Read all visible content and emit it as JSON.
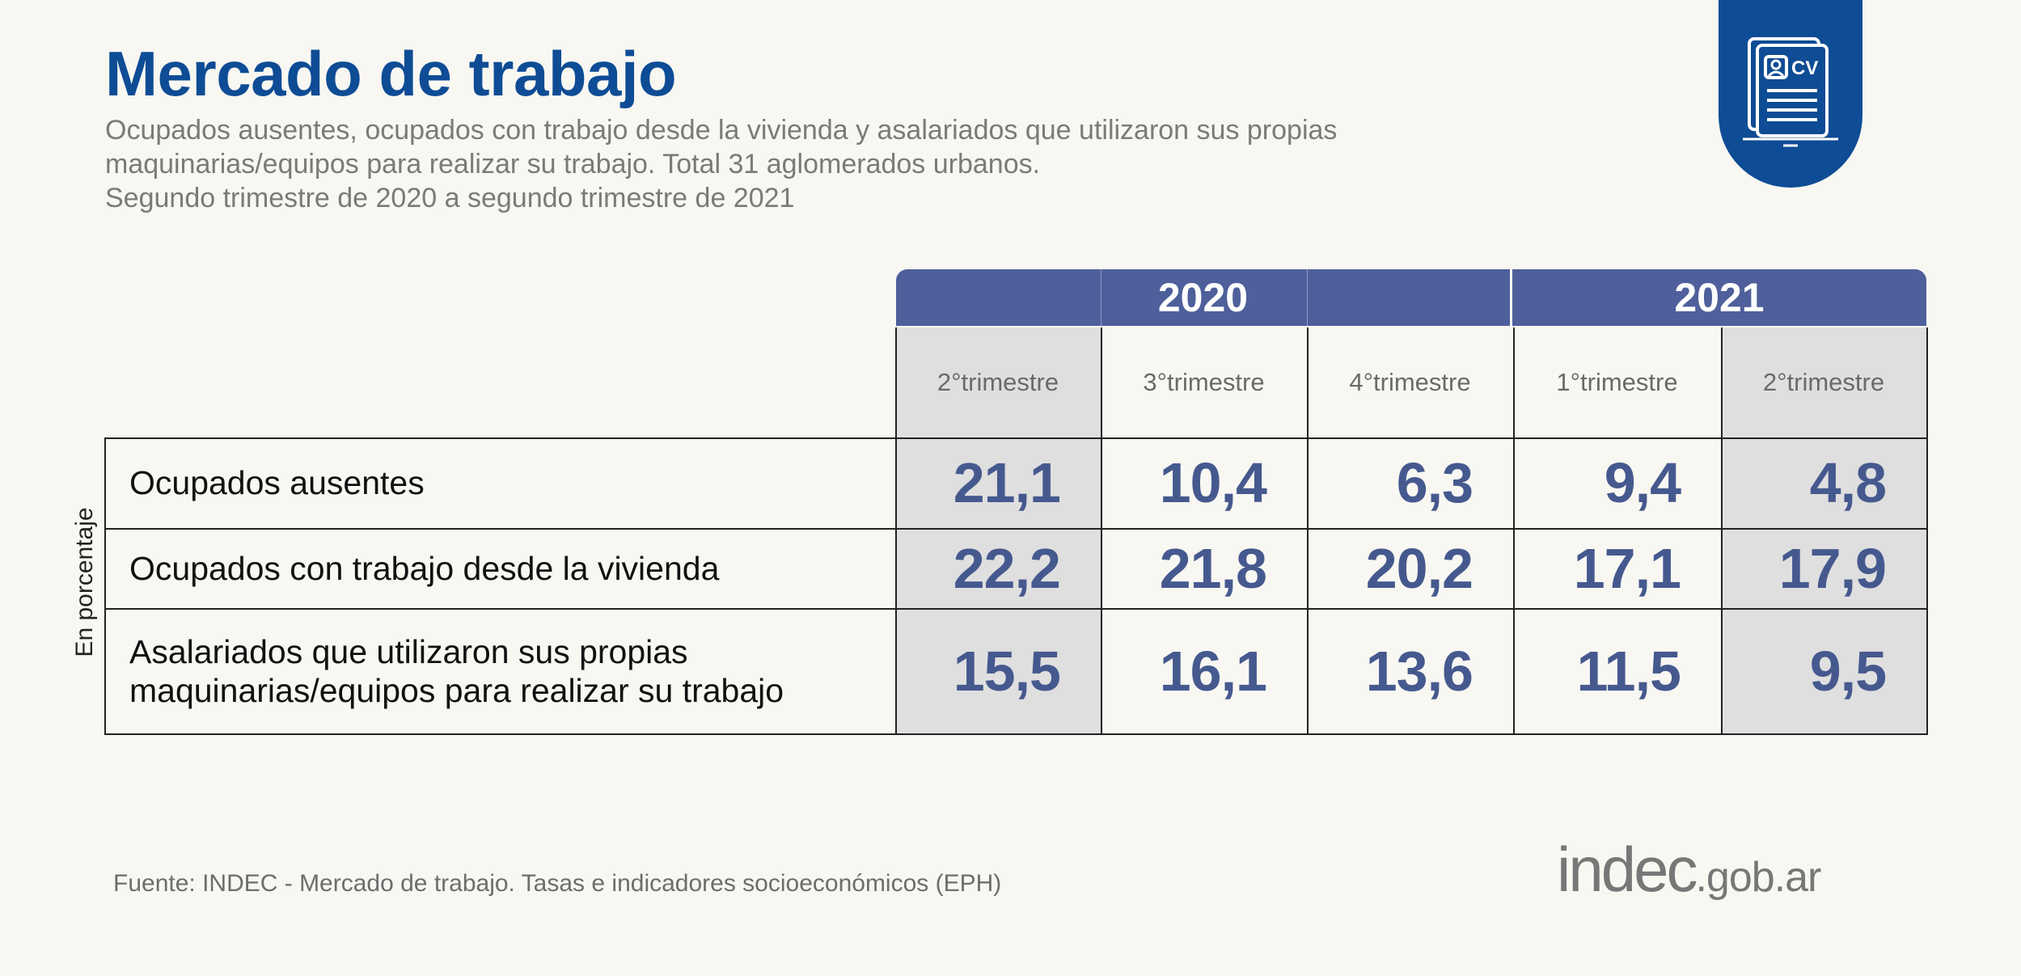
{
  "header": {
    "title": "Mercado de trabajo",
    "subtitle_lines": [
      "Ocupados ausentes, ocupados con trabajo desde la vivienda y asalariados que utilizaron sus propias",
      "maquinarias/equipos para realizar su trabajo. Total 31 aglomerados urbanos.",
      "Segundo trimestre de 2020 a segundo trimestre de 2021"
    ]
  },
  "badge": {
    "icon": "cv-document-icon",
    "text": "CV",
    "color": "#0e4c95"
  },
  "chart_data": {
    "type": "table",
    "ylabel": "En porcentaje",
    "years": [
      {
        "label": "2020",
        "span": 3
      },
      {
        "label": "2021",
        "span": 2
      }
    ],
    "categories": [
      "2°trimestre",
      "3°trimestre",
      "4°trimestre",
      "1°trimestre",
      "2°trimestre"
    ],
    "highlighted_columns": [
      0,
      4
    ],
    "rows": [
      {
        "label_lines": [
          "Ocupados ausentes"
        ],
        "values": [
          "21,1",
          "10,4",
          "6,3",
          "9,4",
          "4,8"
        ]
      },
      {
        "label_lines": [
          "Ocupados con trabajo desde la vivienda"
        ],
        "values": [
          "22,2",
          "21,8",
          "20,2",
          "17,1",
          "17,9"
        ]
      },
      {
        "label_lines": [
          "Asalariados que utilizaron sus propias",
          "maquinarias/equipos para realizar su trabajo"
        ],
        "values": [
          "15,5",
          "16,1",
          "13,6",
          "11,5",
          "9,5"
        ]
      }
    ],
    "colors": {
      "header_band": "#4e5f9b",
      "values": "#46598f",
      "highlight": "#dfdfdf"
    }
  },
  "footer": {
    "source": "Fuente: INDEC - Mercado de trabajo. Tasas e indicadores socioeconómicos (EPH)",
    "logo_main": "indec",
    "logo_domain": ".gob.ar"
  }
}
